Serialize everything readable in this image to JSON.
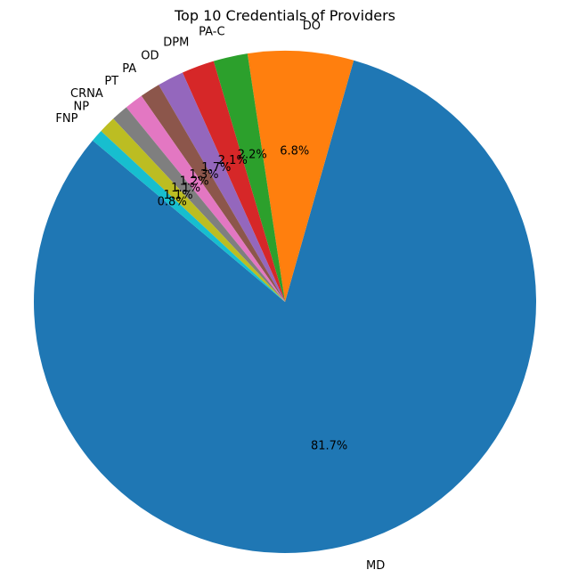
{
  "chart_data": {
    "type": "pie",
    "title": "Top 10 Credentials of Providers",
    "start_angle_deg": 140,
    "counterclock": true,
    "label_order": "clockwise-from-top-of-MD",
    "slices": [
      {
        "label": "MD",
        "value": 81.7,
        "pct_label": "81.7%",
        "color": "#1f77b4"
      },
      {
        "label": "DO",
        "value": 6.8,
        "pct_label": "6.8%",
        "color": "#ff7f0e"
      },
      {
        "label": "PA-C",
        "value": 2.2,
        "pct_label": "2.2%",
        "color": "#2ca02c"
      },
      {
        "label": "DPM",
        "value": 2.1,
        "pct_label": "2.1%",
        "color": "#d62728"
      },
      {
        "label": "OD",
        "value": 1.7,
        "pct_label": "1.7%",
        "color": "#9467bd"
      },
      {
        "label": "PA",
        "value": 1.3,
        "pct_label": "1.3%",
        "color": "#8c564b"
      },
      {
        "label": "PT",
        "value": 1.2,
        "pct_label": "1.2%",
        "color": "#e377c2"
      },
      {
        "label": "CRNA",
        "value": 1.1,
        "pct_label": "1.1%",
        "color": "#7f7f7f"
      },
      {
        "label": "NP",
        "value": 1.1,
        "pct_label": "1.1%",
        "color": "#bcbd22"
      },
      {
        "label": "FNP",
        "value": 0.8,
        "pct_label": "0.8%",
        "color": "#17becf"
      }
    ]
  }
}
